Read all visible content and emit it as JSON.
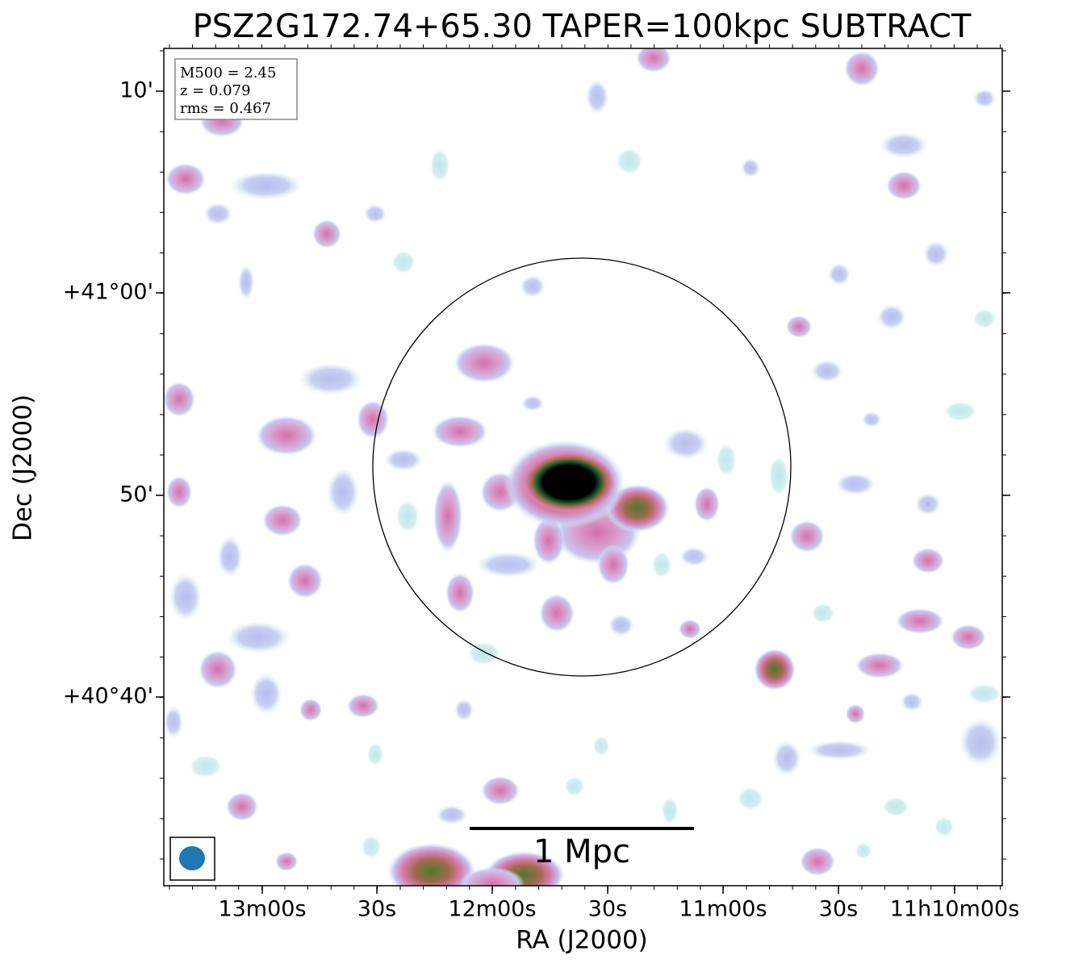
{
  "title": "PSZ2G172.74+65.30 TAPER=100kpc SUBTRACT",
  "annotation": [
    "M500 = 2.45",
    "z = 0.079",
    "rms = 0.467"
  ],
  "x_axis": {
    "label": "RA (J2000)",
    "ticks": [
      "13m00s",
      "30s",
      "12m00s",
      "30s",
      "11m00s",
      "30s",
      "11h10m00s"
    ]
  },
  "y_axis": {
    "label": "Dec (J2000)",
    "ticks": [
      "10'",
      "+41°00'",
      "50'",
      "+40°40'"
    ]
  },
  "scalebar_label": "1 Mpc"
}
